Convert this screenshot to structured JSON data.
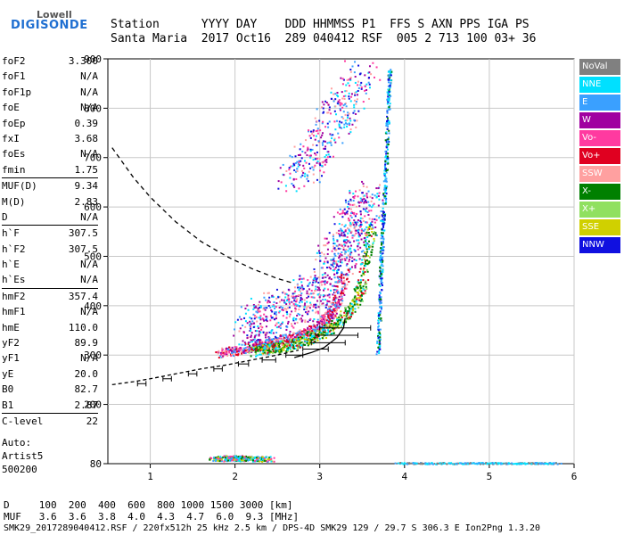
{
  "logo": {
    "line1": "Lowell",
    "line2": "DIGISONDE"
  },
  "header": {
    "line1": "Station      YYYY DAY    DDD HHMMSS P1  FFS S AXN PPS IGA PS",
    "line2": "Santa Maria  2017 Oct16  289 040412 RSF  005 2 713 100 03+ 36"
  },
  "params": [
    {
      "k": "foF2",
      "v": "3.300"
    },
    {
      "k": "foF1",
      "v": "N/A"
    },
    {
      "k": "foF1p",
      "v": "N/A"
    },
    {
      "k": "foE",
      "v": "N/A"
    },
    {
      "k": "foEp",
      "v": "0.39"
    },
    {
      "k": "fxI",
      "v": "3.68"
    },
    {
      "k": "foEs",
      "v": "N/A"
    },
    {
      "k": "fmin",
      "v": "1.75"
    },
    {
      "k": "MUF(D)",
      "v": "9.34",
      "div": true
    },
    {
      "k": "M(D)",
      "v": "2.83"
    },
    {
      "k": "D",
      "v": "N/A"
    },
    {
      "k": "h`F",
      "v": "307.5",
      "div": true
    },
    {
      "k": "h`F2",
      "v": "307.5"
    },
    {
      "k": "h`E",
      "v": "N/A"
    },
    {
      "k": "h`Es",
      "v": "N/A"
    },
    {
      "k": "hmF2",
      "v": "357.4",
      "div": true
    },
    {
      "k": "hmF1",
      "v": "N/A"
    },
    {
      "k": "hmE",
      "v": "110.0"
    },
    {
      "k": "yF2",
      "v": "89.9"
    },
    {
      "k": "yF1",
      "v": "N/A"
    },
    {
      "k": "yE",
      "v": "20.0"
    },
    {
      "k": "B0",
      "v": "82.7"
    },
    {
      "k": "B1",
      "v": "2.87"
    },
    {
      "k": "C-level",
      "v": "22",
      "div": true
    }
  ],
  "auto": {
    "line1": "Auto:",
    "line2": "Artist5",
    "line3": "500200"
  },
  "legend": [
    {
      "label": "NoVal",
      "color": "#808080"
    },
    {
      "label": "NNE",
      "color": "#00e0ff"
    },
    {
      "label": "E",
      "color": "#3aa0ff"
    },
    {
      "label": "W",
      "color": "#a000a0"
    },
    {
      "label": "Vo-",
      "color": "#ff3aa0"
    },
    {
      "label": "Vo+",
      "color": "#e00020"
    },
    {
      "label": "SSW",
      "color": "#ffa0a0"
    },
    {
      "label": "X-",
      "color": "#008000"
    },
    {
      "label": "X+",
      "color": "#90e060"
    },
    {
      "label": "SSE",
      "color": "#d0d000"
    },
    {
      "label": "NNW",
      "color": "#1010e0"
    }
  ],
  "chart_data": {
    "type": "scatter",
    "xlim": [
      0.5,
      6.0
    ],
    "ylim": [
      80,
      900
    ],
    "xticks": [
      "1",
      "2",
      "3",
      "4",
      "5",
      "6"
    ],
    "yticks": [
      "80",
      "200",
      "300",
      "400",
      "500",
      "600",
      "700",
      "800",
      "900"
    ],
    "grid": true,
    "profile_solid": {
      "x": [
        2.7,
        2.9,
        3.05,
        3.2,
        3.28,
        3.3
      ],
      "y": [
        295,
        305,
        315,
        335,
        355,
        375
      ]
    },
    "profile_dashed": {
      "x": [
        0.55,
        0.8,
        1.0,
        1.3,
        1.6,
        1.9,
        2.2,
        2.5,
        2.75
      ],
      "y": [
        240,
        246,
        252,
        262,
        272,
        280,
        290,
        300,
        310
      ]
    },
    "mufcurve_dashed": {
      "x": [
        0.55,
        0.8,
        1.0,
        1.3,
        1.6,
        1.9,
        2.2,
        2.5,
        2.7
      ],
      "y": [
        720,
        660,
        620,
        570,
        530,
        500,
        475,
        455,
        445
      ]
    },
    "trace_ox": {
      "x": [
        1.8,
        2.0,
        2.2,
        2.4,
        2.6,
        2.8,
        3.0,
        3.1,
        3.2,
        3.3
      ],
      "y": [
        305,
        310,
        318,
        325,
        335,
        345,
        360,
        380,
        410,
        470
      ]
    },
    "trace_x": {
      "x": [
        2.2,
        2.4,
        2.6,
        2.8,
        3.0,
        3.2,
        3.4,
        3.5,
        3.6
      ],
      "y": [
        310,
        315,
        320,
        330,
        345,
        365,
        400,
        450,
        560
      ]
    },
    "spread_F2": {
      "x": [
        2.1,
        2.4,
        2.7,
        3.0,
        3.2,
        3.4,
        3.6
      ],
      "y": [
        350,
        380,
        400,
        430,
        500,
        560,
        620
      ]
    },
    "multi_F2": {
      "x": [
        2.7,
        2.9,
        3.1,
        3.3,
        3.5
      ],
      "y": [
        660,
        700,
        760,
        820,
        880
      ]
    },
    "esporadic_low": {
      "x": [
        1.75,
        1.9,
        2.0,
        2.1,
        2.2,
        2.3,
        2.4
      ],
      "y": [
        90,
        92,
        93,
        91,
        92,
        90,
        91
      ]
    },
    "vertical_spike": {
      "x": [
        3.68,
        3.7,
        3.72,
        3.75,
        3.78,
        3.8,
        3.82
      ],
      "y": [
        300,
        400,
        500,
        600,
        700,
        800,
        880
      ]
    },
    "low_line": {
      "x": [
        3.9,
        4.5,
        5.0,
        5.5,
        5.8
      ],
      "y": [
        82,
        82,
        82,
        82,
        82
      ]
    },
    "error_bars": [
      {
        "x": 3.3,
        "y": 355,
        "err": 0.3
      },
      {
        "x": 3.2,
        "y": 340,
        "err": 0.25
      },
      {
        "x": 3.1,
        "y": 325,
        "err": 0.2
      },
      {
        "x": 2.95,
        "y": 312,
        "err": 0.15
      },
      {
        "x": 2.7,
        "y": 300,
        "err": 0.1
      },
      {
        "x": 2.4,
        "y": 290,
        "err": 0.08
      },
      {
        "x": 2.1,
        "y": 282,
        "err": 0.06
      },
      {
        "x": 1.8,
        "y": 272,
        "err": 0.05
      },
      {
        "x": 1.5,
        "y": 262,
        "err": 0.05
      },
      {
        "x": 1.2,
        "y": 252,
        "err": 0.05
      },
      {
        "x": 0.9,
        "y": 242,
        "err": 0.05
      }
    ]
  },
  "footer": {
    "d_line": "D     100  200  400  600  800 1000 1500 3000 [km]",
    "muf_line": "MUF   3.6  3.6  3.8  4.0  4.3  4.7  6.0  9.3 [MHz]",
    "file_line": "SMK29_2017289040412.RSF / 220fx512h 25 kHz 2.5 km / DPS-4D SMK29 129 / 29.7 S 306.3 E Ion2Png 1.3.20"
  }
}
